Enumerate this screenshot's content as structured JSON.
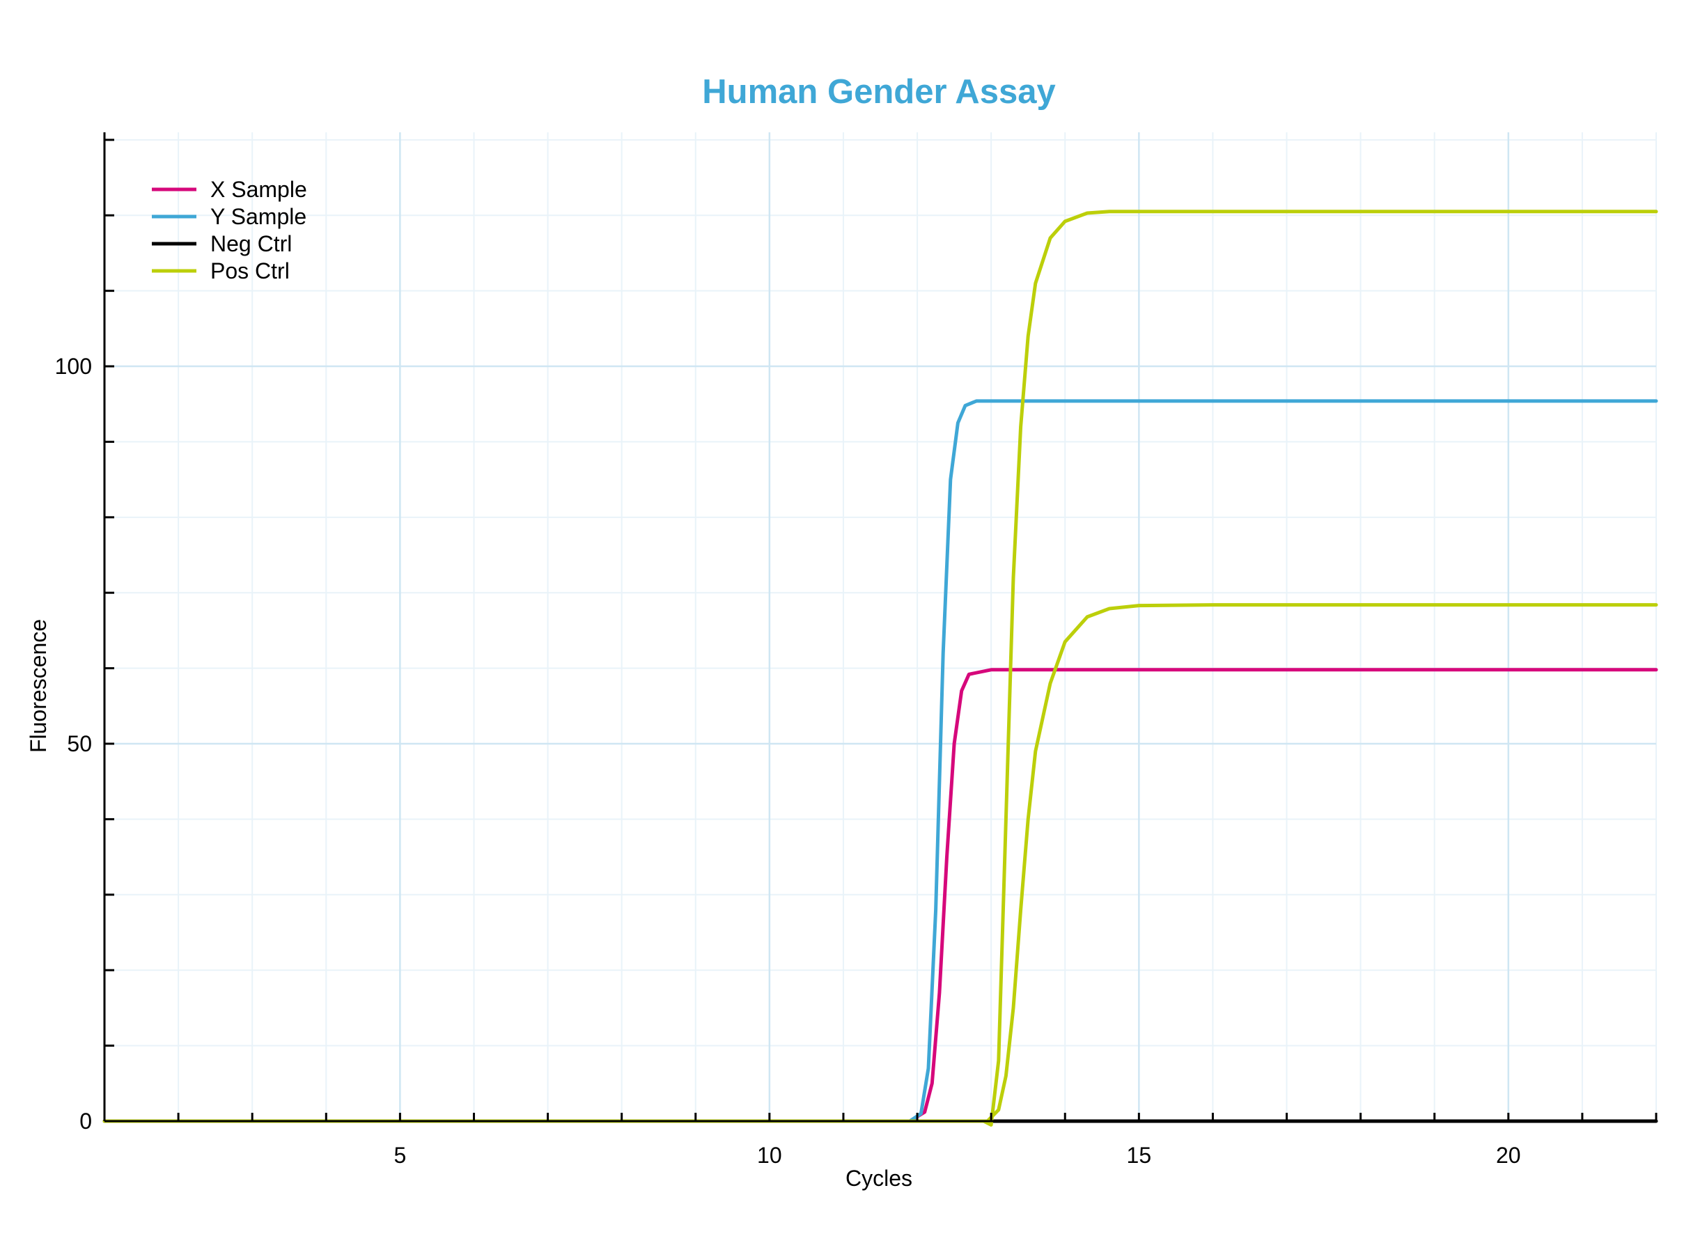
{
  "chart_data": {
    "type": "line",
    "title": "Human Gender Assay",
    "xlabel": "Cycles",
    "ylabel": "Fluorescence",
    "xlim": [
      1,
      22
    ],
    "ylim": [
      0,
      131
    ],
    "x_ticks": [
      5,
      10,
      15,
      20
    ],
    "y_ticks": [
      0,
      50,
      100
    ],
    "x_minor_step": 1,
    "y_minor_step": 10,
    "grid": true,
    "legend_position": "top-left",
    "colors": {
      "title": "#3fa7d6",
      "grid_major": "#cfe6f3",
      "grid_minor": "#e9f3f9",
      "axis": "#000000"
    },
    "series": [
      {
        "name": "X Sample",
        "color": "#d6087b",
        "x": [
          1,
          11.9,
          12.1,
          12.2,
          12.3,
          12.4,
          12.5,
          12.6,
          12.7,
          13,
          14,
          22
        ],
        "y": [
          0,
          0,
          1.2,
          5,
          17,
          35,
          50,
          57,
          59.2,
          59.8,
          59.8,
          59.8
        ]
      },
      {
        "name": "Y Sample",
        "color": "#3fa7d6",
        "x": [
          1,
          11.9,
          12.05,
          12.15,
          12.25,
          12.35,
          12.45,
          12.55,
          12.65,
          12.8,
          13.2,
          22
        ],
        "y": [
          0,
          0,
          1,
          7,
          28,
          62,
          85,
          92.5,
          94.8,
          95.4,
          95.4,
          95.4
        ]
      },
      {
        "name": "Neg Ctrl",
        "color": "#000000",
        "x": [
          1,
          22
        ],
        "y": [
          0,
          0
        ]
      },
      {
        "name": "Pos Ctrl",
        "color": "#bccf0a",
        "x": [
          1,
          12.9,
          13.0,
          13.1,
          13.2,
          13.3,
          13.4,
          13.5,
          13.6,
          13.8,
          14.0,
          14.3,
          14.6,
          15,
          22
        ],
        "y": [
          0,
          0,
          -0.5,
          8,
          40,
          72,
          92,
          104,
          111,
          117,
          119.2,
          120.3,
          120.5,
          120.5,
          120.5
        ]
      },
      {
        "name": "Pos Ctrl",
        "color": "#bccf0a",
        "x": [
          1,
          12.95,
          13.1,
          13.2,
          13.3,
          13.4,
          13.5,
          13.6,
          13.8,
          14.0,
          14.3,
          14.6,
          15,
          16,
          22
        ],
        "y": [
          0,
          0,
          1.5,
          6,
          15,
          28,
          40,
          49,
          58,
          63.5,
          66.8,
          67.9,
          68.3,
          68.4,
          68.4
        ]
      }
    ],
    "legend": [
      "X Sample",
      "Y Sample",
      "Neg Ctrl",
      "Pos Ctrl"
    ]
  }
}
